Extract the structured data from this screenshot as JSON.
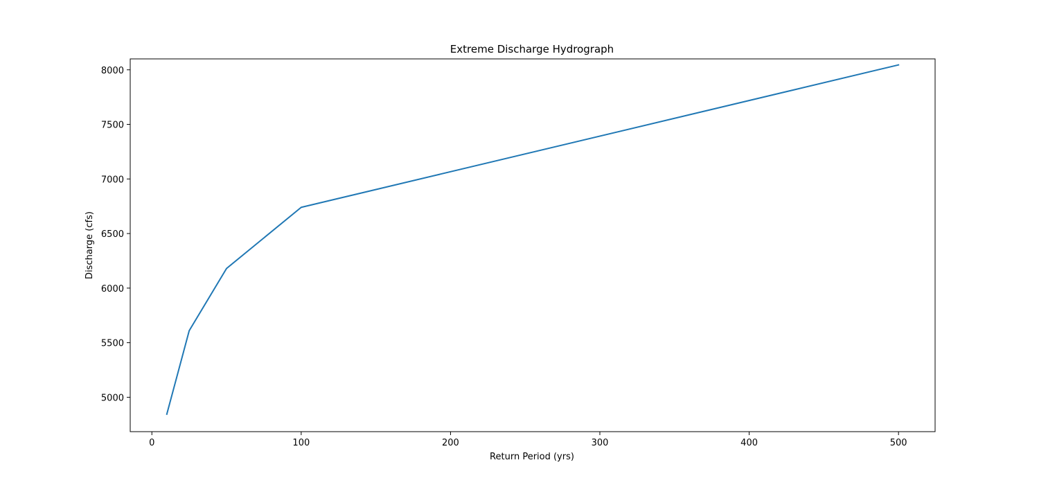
{
  "chart_data": {
    "type": "line",
    "title": "Extreme Discharge Hydrograph",
    "xlabel": "Return Period (yrs)",
    "ylabel": "Discharge (cfs)",
    "xlim": [
      -14.5,
      524.5
    ],
    "ylim": [
      4685,
      8100
    ],
    "xticks": [
      0,
      100,
      200,
      300,
      400,
      500
    ],
    "yticks": [
      5000,
      5500,
      6000,
      6500,
      7000,
      7500,
      8000
    ],
    "grid": false,
    "series": [
      {
        "color": "#1f77b4",
        "x": [
          10,
          25,
          50,
          100,
          500
        ],
        "y": [
          4845,
          5610,
          6180,
          6740,
          8045
        ]
      }
    ]
  }
}
